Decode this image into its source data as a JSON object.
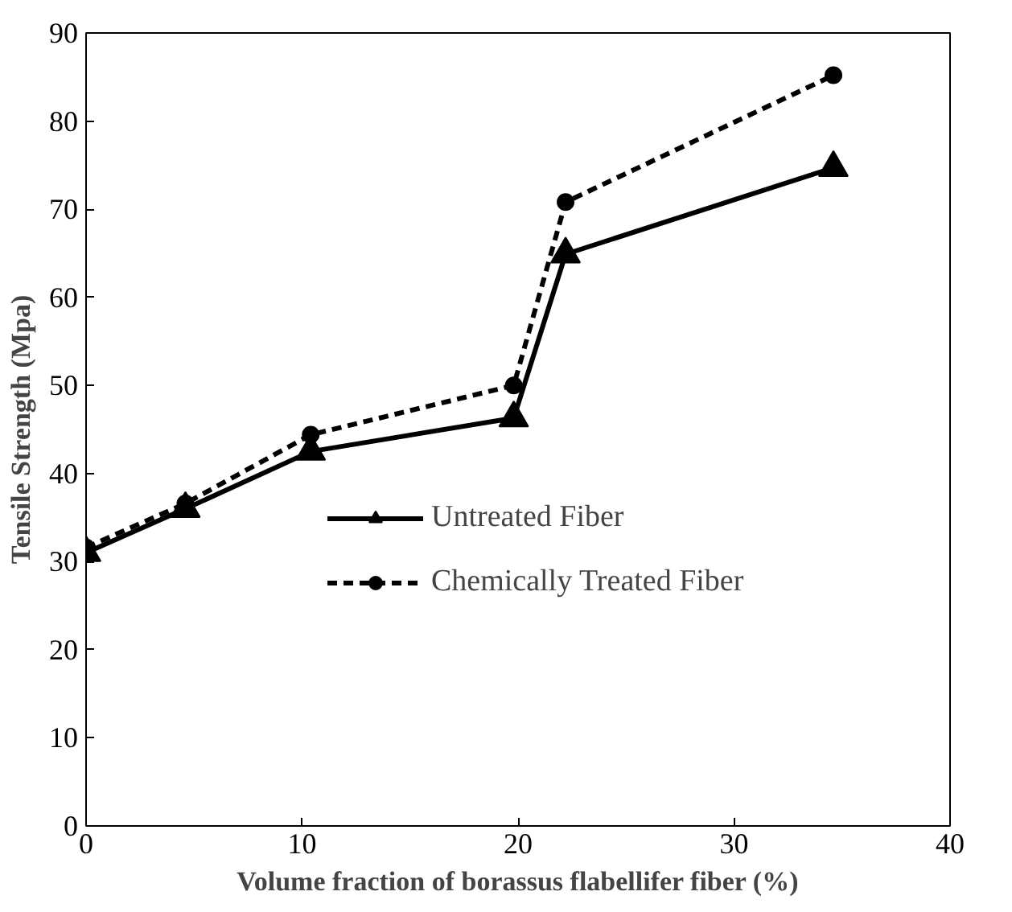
{
  "chart_data": {
    "type": "line",
    "xlabel": "Volume fraction of borassus flabellifer fiber (%)",
    "ylabel": "Tensile Strength (Mpa)",
    "x": [
      0,
      4.6,
      10.4,
      19.8,
      22.2,
      34.6
    ],
    "series": [
      {
        "name": "Untreated Fiber",
        "color": "#000000",
        "values": [
          31.0,
          36.0,
          42.5,
          46.3,
          64.9,
          74.7
        ],
        "marker": "triangle",
        "line_style": "solid"
      },
      {
        "name": "Chemically Treated Fiber",
        "color": "#000000",
        "values": [
          31.6,
          36.6,
          44.4,
          50.0,
          70.8,
          85.2
        ],
        "marker": "circle",
        "line_style": "dashed"
      }
    ],
    "xlim": [
      0,
      40
    ],
    "xticks": [
      0,
      10,
      20,
      30,
      40
    ],
    "ylim": [
      0,
      90
    ],
    "yticks": [
      0,
      10,
      20,
      30,
      40,
      50,
      60,
      70,
      80,
      90
    ],
    "grid": false,
    "legend": "left"
  }
}
